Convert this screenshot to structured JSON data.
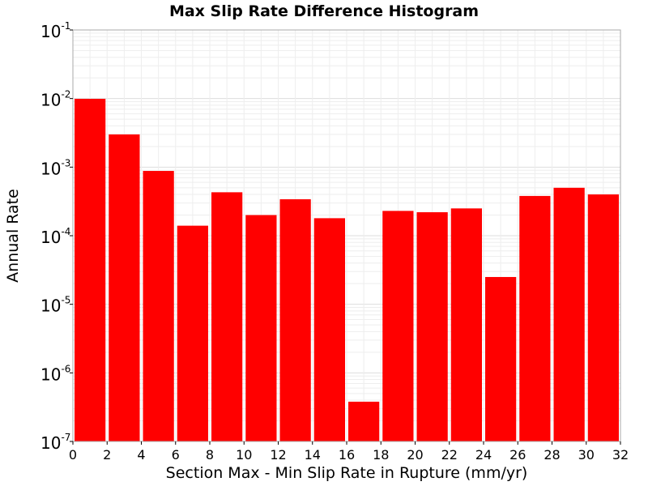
{
  "chart_data": {
    "type": "bar",
    "title": "Max Slip Rate Difference Histogram",
    "xlabel": "Section Max - Min Slip Rate in Rupture (mm/yr)",
    "ylabel": "Annual Rate",
    "xlim": [
      0,
      32
    ],
    "ylim": [
      1e-07,
      0.1
    ],
    "yscale": "log",
    "grid": true,
    "bar_color": "#ff0000",
    "bin_width": 2,
    "x_ticks": [
      "0",
      "2",
      "4",
      "6",
      "8",
      "10",
      "12",
      "14",
      "16",
      "18",
      "20",
      "22",
      "24",
      "26",
      "28",
      "30",
      "32"
    ],
    "y_ticks": [
      {
        "base": "10",
        "exp": "-7"
      },
      {
        "base": "10",
        "exp": "-6"
      },
      {
        "base": "10",
        "exp": "-5"
      },
      {
        "base": "10",
        "exp": "-4"
      },
      {
        "base": "10",
        "exp": "-3"
      },
      {
        "base": "10",
        "exp": "-2"
      },
      {
        "base": "10",
        "exp": "-1"
      }
    ],
    "bins": [
      {
        "x": 1,
        "value": 0.0099
      },
      {
        "x": 3,
        "value": 0.003
      },
      {
        "x": 5,
        "value": 0.00088
      },
      {
        "x": 7,
        "value": 0.00014
      },
      {
        "x": 9,
        "value": 0.00043
      },
      {
        "x": 11,
        "value": 0.0002
      },
      {
        "x": 13,
        "value": 0.00034
      },
      {
        "x": 15,
        "value": 0.00018
      },
      {
        "x": 17,
        "value": 3.8e-07
      },
      {
        "x": 19,
        "value": 0.00023
      },
      {
        "x": 21,
        "value": 0.00022
      },
      {
        "x": 23,
        "value": 0.00025
      },
      {
        "x": 25,
        "value": 2.5e-05
      },
      {
        "x": 27,
        "value": 0.00038
      },
      {
        "x": 29,
        "value": 0.0005
      },
      {
        "x": 31,
        "value": 0.0004
      }
    ]
  }
}
